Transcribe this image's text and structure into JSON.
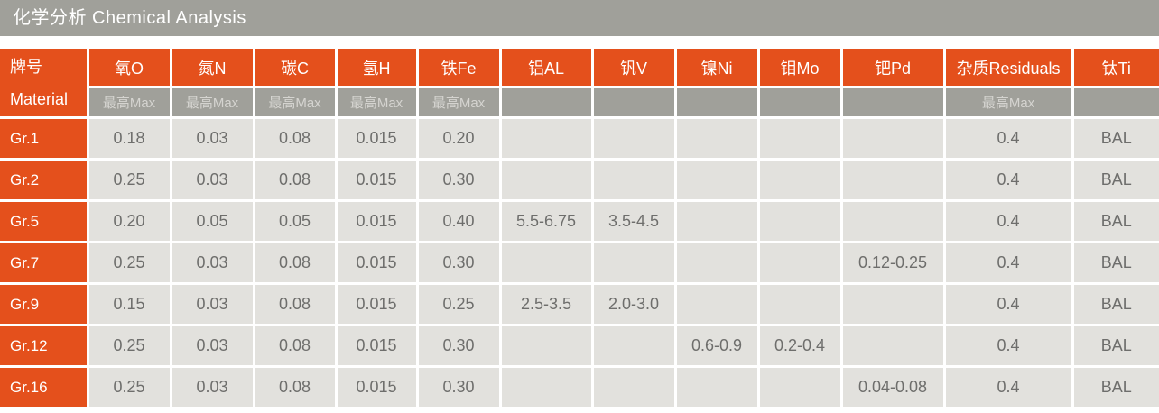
{
  "title": "化学分析 Chemical Analysis",
  "colors": {
    "accent_orange": "#E4501C",
    "bar_gray": "#A0A09A",
    "cell_bg": "#E2E1DD",
    "cell_text": "#6E6E6C",
    "subheader_text": "#D5D4D0"
  },
  "table": {
    "material_header": {
      "cn": "牌号",
      "en": "Material"
    },
    "max_label": "最高Max",
    "columns": [
      {
        "label": "氧O",
        "sub": "最高Max"
      },
      {
        "label": "氮N",
        "sub": "最高Max"
      },
      {
        "label": "碳C",
        "sub": "最高Max"
      },
      {
        "label": "氢H",
        "sub": "最高Max"
      },
      {
        "label": "铁Fe",
        "sub": "最高Max"
      },
      {
        "label": "铝AL",
        "sub": ""
      },
      {
        "label": "钒V",
        "sub": ""
      },
      {
        "label": "镍Ni",
        "sub": ""
      },
      {
        "label": "钼Mo",
        "sub": ""
      },
      {
        "label": "钯Pd",
        "sub": ""
      },
      {
        "label": "杂质Residuals",
        "sub": "最高Max"
      },
      {
        "label": "钛Ti",
        "sub": ""
      }
    ],
    "rows": [
      {
        "material": "Gr.1",
        "values": [
          "0.18",
          "0.03",
          "0.08",
          "0.015",
          "0.20",
          "",
          "",
          "",
          "",
          "",
          "0.4",
          "BAL"
        ]
      },
      {
        "material": "Gr.2",
        "values": [
          "0.25",
          "0.03",
          "0.08",
          "0.015",
          "0.30",
          "",
          "",
          "",
          "",
          "",
          "0.4",
          "BAL"
        ]
      },
      {
        "material": "Gr.5",
        "values": [
          "0.20",
          "0.05",
          "0.05",
          "0.015",
          "0.40",
          "5.5-6.75",
          "3.5-4.5",
          "",
          "",
          "",
          "0.4",
          "BAL"
        ]
      },
      {
        "material": "Gr.7",
        "values": [
          "0.25",
          "0.03",
          "0.08",
          "0.015",
          "0.30",
          "",
          "",
          "",
          "",
          "0.12-0.25",
          "0.4",
          "BAL"
        ]
      },
      {
        "material": "Gr.9",
        "values": [
          "0.15",
          "0.03",
          "0.08",
          "0.015",
          "0.25",
          "2.5-3.5",
          "2.0-3.0",
          "",
          "",
          "",
          "0.4",
          "BAL"
        ]
      },
      {
        "material": "Gr.12",
        "values": [
          "0.25",
          "0.03",
          "0.08",
          "0.015",
          "0.30",
          "",
          "",
          "0.6-0.9",
          "0.2-0.4",
          "",
          "0.4",
          "BAL"
        ]
      },
      {
        "material": "Gr.16",
        "values": [
          "0.25",
          "0.03",
          "0.08",
          "0.015",
          "0.30",
          "",
          "",
          "",
          "",
          "0.04-0.08",
          "0.4",
          "BAL"
        ]
      }
    ]
  }
}
